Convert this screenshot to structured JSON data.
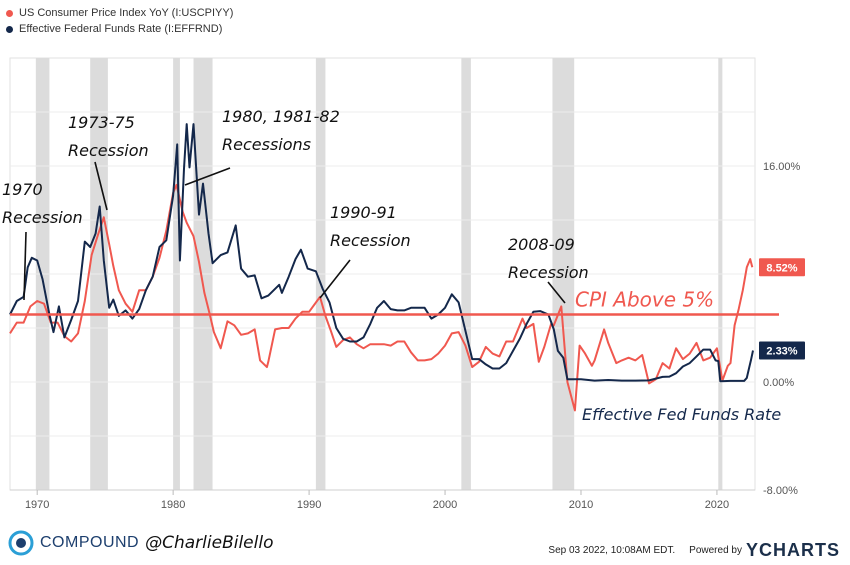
{
  "legend": [
    {
      "label": "US Consumer Price Index YoY (I:USCPIYY)",
      "color": "#f0584f"
    },
    {
      "label": "Effective Federal Funds Rate (I:EFFRND)",
      "color": "#14284b"
    }
  ],
  "footer": {
    "brand": "COMPOUND",
    "handle": "@CharlieBilello",
    "timestamp": "Sep 03 2022, 10:08AM EDT.",
    "powered_by": "Powered by",
    "ycharts": "YCHARTS"
  },
  "chart_data": {
    "type": "line",
    "x_range": [
      1968,
      2022.8
    ],
    "y_range": [
      -8,
      24
    ],
    "y_ticks": [
      {
        "value": 16,
        "label": "16.00%"
      },
      {
        "value": 0,
        "label": "0.00%"
      },
      {
        "value": -8,
        "label": "-8.00%"
      }
    ],
    "x_ticks": [
      {
        "value": 1970,
        "label": "1970"
      },
      {
        "value": 1980,
        "label": "1980"
      },
      {
        "value": 1990,
        "label": "1990"
      },
      {
        "value": 2000,
        "label": "2000"
      },
      {
        "value": 2010,
        "label": "2010"
      },
      {
        "value": 2020,
        "label": "2020"
      }
    ],
    "recessions": [
      [
        1969.9,
        1970.9
      ],
      [
        1973.9,
        1975.2
      ],
      [
        1980.0,
        1980.5
      ],
      [
        1981.5,
        1982.9
      ],
      [
        1990.5,
        1991.2
      ],
      [
        2001.2,
        2001.9
      ],
      [
        2007.9,
        2009.5
      ],
      [
        2020.1,
        2020.4
      ]
    ],
    "reference_line": {
      "value": 5,
      "label": "CPI Above 5%",
      "color": "#f0584f"
    },
    "series": [
      {
        "name": "US Consumer Price Index YoY (I:USCPIYY)",
        "color": "#f0584f",
        "end_label": "8.52%",
        "points": [
          [
            1968,
            3.6
          ],
          [
            1968.5,
            4.4
          ],
          [
            1969,
            4.4
          ],
          [
            1969.5,
            5.6
          ],
          [
            1970,
            6.0
          ],
          [
            1970.5,
            5.8
          ],
          [
            1971,
            4.4
          ],
          [
            1971.5,
            4.4
          ],
          [
            1972,
            3.4
          ],
          [
            1972.5,
            3.0
          ],
          [
            1973,
            3.6
          ],
          [
            1973.5,
            6.0
          ],
          [
            1974,
            9.4
          ],
          [
            1974.5,
            11.0
          ],
          [
            1974.9,
            12.2
          ],
          [
            1975.3,
            10.2
          ],
          [
            1975.6,
            8.6
          ],
          [
            1976,
            6.8
          ],
          [
            1976.5,
            5.8
          ],
          [
            1977,
            5.2
          ],
          [
            1977.5,
            6.8
          ],
          [
            1978,
            6.8
          ],
          [
            1978.5,
            7.8
          ],
          [
            1979,
            9.2
          ],
          [
            1979.5,
            11.2
          ],
          [
            1980,
            14.0
          ],
          [
            1980.25,
            14.6
          ],
          [
            1980.7,
            12.6
          ],
          [
            1981,
            11.8
          ],
          [
            1981.5,
            10.8
          ],
          [
            1981.9,
            8.9
          ],
          [
            1982.3,
            6.6
          ],
          [
            1982.7,
            5.0
          ],
          [
            1983,
            3.7
          ],
          [
            1983.5,
            2.5
          ],
          [
            1984,
            4.5
          ],
          [
            1984.5,
            4.2
          ],
          [
            1985,
            3.5
          ],
          [
            1985.5,
            3.6
          ],
          [
            1986,
            3.9
          ],
          [
            1986.4,
            1.6
          ],
          [
            1986.9,
            1.1
          ],
          [
            1987,
            1.5
          ],
          [
            1987.5,
            3.9
          ],
          [
            1988,
            4.0
          ],
          [
            1988.5,
            4.0
          ],
          [
            1989,
            4.7
          ],
          [
            1989.5,
            5.2
          ],
          [
            1990,
            5.2
          ],
          [
            1990.8,
            6.3
          ],
          [
            1991.2,
            4.9
          ],
          [
            1991.6,
            3.8
          ],
          [
            1992,
            2.6
          ],
          [
            1992.5,
            3.1
          ],
          [
            1993,
            3.3
          ],
          [
            1993.5,
            2.8
          ],
          [
            1994,
            2.5
          ],
          [
            1994.5,
            2.8
          ],
          [
            1995,
            2.8
          ],
          [
            1995.5,
            2.8
          ],
          [
            1996,
            2.7
          ],
          [
            1996.5,
            3.0
          ],
          [
            1997,
            3.0
          ],
          [
            1997.5,
            2.2
          ],
          [
            1998,
            1.6
          ],
          [
            1998.5,
            1.6
          ],
          [
            1999,
            1.7
          ],
          [
            1999.5,
            2.1
          ],
          [
            2000,
            2.7
          ],
          [
            2000.5,
            3.6
          ],
          [
            2001,
            3.7
          ],
          [
            2001.5,
            2.7
          ],
          [
            2002,
            1.1
          ],
          [
            2002.5,
            1.5
          ],
          [
            2003,
            2.6
          ],
          [
            2003.5,
            2.1
          ],
          [
            2004,
            1.9
          ],
          [
            2004.5,
            3.0
          ],
          [
            2005,
            3.0
          ],
          [
            2005.7,
            4.7
          ],
          [
            2006,
            4.0
          ],
          [
            2006.5,
            4.3
          ],
          [
            2006.9,
            1.5
          ],
          [
            2007.3,
            2.6
          ],
          [
            2007.8,
            4.3
          ],
          [
            2008,
            4.2
          ],
          [
            2008.55,
            5.6
          ],
          [
            2009,
            0.0
          ],
          [
            2009.55,
            -2.1
          ],
          [
            2009.9,
            2.7
          ],
          [
            2010.3,
            2.1
          ],
          [
            2010.8,
            1.2
          ],
          [
            2011,
            1.6
          ],
          [
            2011.7,
            3.9
          ],
          [
            2012,
            2.9
          ],
          [
            2012.6,
            1.4
          ],
          [
            2013,
            1.6
          ],
          [
            2013.5,
            1.8
          ],
          [
            2014,
            1.6
          ],
          [
            2014.5,
            2.0
          ],
          [
            2015,
            -0.1
          ],
          [
            2015.5,
            0.2
          ],
          [
            2016,
            1.4
          ],
          [
            2016.5,
            1.0
          ],
          [
            2017,
            2.5
          ],
          [
            2017.5,
            1.7
          ],
          [
            2018,
            2.1
          ],
          [
            2018.5,
            2.9
          ],
          [
            2019,
            1.6
          ],
          [
            2019.5,
            1.8
          ],
          [
            2020,
            2.5
          ],
          [
            2020.4,
            0.1
          ],
          [
            2020.8,
            1.2
          ],
          [
            2021,
            1.4
          ],
          [
            2021.3,
            4.2
          ],
          [
            2021.6,
            5.4
          ],
          [
            2021.9,
            6.8
          ],
          [
            2022.2,
            8.5
          ],
          [
            2022.45,
            9.1
          ],
          [
            2022.6,
            8.5
          ]
        ]
      },
      {
        "name": "Effective Federal Funds Rate (I:EFFRND)",
        "color": "#14284b",
        "end_label": "2.33%",
        "points": [
          [
            1968,
            5.0
          ],
          [
            1968.5,
            6.0
          ],
          [
            1969,
            6.3
          ],
          [
            1969.3,
            8.5
          ],
          [
            1969.6,
            9.2
          ],
          [
            1970,
            9.0
          ],
          [
            1970.4,
            7.6
          ],
          [
            1970.9,
            5.0
          ],
          [
            1971.2,
            3.7
          ],
          [
            1971.6,
            5.6
          ],
          [
            1972,
            3.3
          ],
          [
            1972.5,
            4.6
          ],
          [
            1973,
            6.0
          ],
          [
            1973.5,
            10.4
          ],
          [
            1973.9,
            10.0
          ],
          [
            1974.3,
            11.0
          ],
          [
            1974.6,
            13.0
          ],
          [
            1974.9,
            9.0
          ],
          [
            1975.3,
            5.5
          ],
          [
            1975.6,
            6.1
          ],
          [
            1976,
            4.9
          ],
          [
            1976.5,
            5.3
          ],
          [
            1977,
            4.7
          ],
          [
            1977.5,
            5.4
          ],
          [
            1978,
            6.8
          ],
          [
            1978.5,
            7.8
          ],
          [
            1979,
            10.0
          ],
          [
            1979.5,
            10.5
          ],
          [
            1980,
            13.8
          ],
          [
            1980.3,
            17.6
          ],
          [
            1980.5,
            9.0
          ],
          [
            1980.8,
            15.8
          ],
          [
            1981,
            19.1
          ],
          [
            1981.2,
            15.9
          ],
          [
            1981.5,
            19.1
          ],
          [
            1981.9,
            12.4
          ],
          [
            1982.2,
            14.7
          ],
          [
            1982.6,
            11.0
          ],
          [
            1982.9,
            8.8
          ],
          [
            1983.5,
            9.4
          ],
          [
            1984,
            9.6
          ],
          [
            1984.6,
            11.6
          ],
          [
            1985,
            8.4
          ],
          [
            1985.5,
            7.8
          ],
          [
            1986,
            7.9
          ],
          [
            1986.5,
            6.2
          ],
          [
            1987,
            6.4
          ],
          [
            1987.8,
            7.2
          ],
          [
            1988,
            6.6
          ],
          [
            1988.5,
            7.8
          ],
          [
            1989,
            9.1
          ],
          [
            1989.4,
            9.8
          ],
          [
            1989.9,
            8.4
          ],
          [
            1990.5,
            8.2
          ],
          [
            1991,
            6.9
          ],
          [
            1991.5,
            5.9
          ],
          [
            1992,
            4.0
          ],
          [
            1992.5,
            3.2
          ],
          [
            1993,
            3.0
          ],
          [
            1993.5,
            3.0
          ],
          [
            1994,
            3.3
          ],
          [
            1994.5,
            4.3
          ],
          [
            1995,
            5.5
          ],
          [
            1995.5,
            6.0
          ],
          [
            1996,
            5.4
          ],
          [
            1996.5,
            5.3
          ],
          [
            1997,
            5.3
          ],
          [
            1997.5,
            5.5
          ],
          [
            1998,
            5.5
          ],
          [
            1998.5,
            5.5
          ],
          [
            1999,
            4.7
          ],
          [
            1999.5,
            5.0
          ],
          [
            2000,
            5.5
          ],
          [
            2000.5,
            6.5
          ],
          [
            2001,
            5.9
          ],
          [
            2001.5,
            3.8
          ],
          [
            2002,
            1.7
          ],
          [
            2002.5,
            1.7
          ],
          [
            2003,
            1.3
          ],
          [
            2003.5,
            1.0
          ],
          [
            2004,
            1.0
          ],
          [
            2004.5,
            1.4
          ],
          [
            2005,
            2.3
          ],
          [
            2005.5,
            3.2
          ],
          [
            2006,
            4.3
          ],
          [
            2006.5,
            5.2
          ],
          [
            2007,
            5.25
          ],
          [
            2007.6,
            5.0
          ],
          [
            2008,
            3.9
          ],
          [
            2008.3,
            2.3
          ],
          [
            2008.7,
            1.8
          ],
          [
            2009,
            0.2
          ],
          [
            2010,
            0.2
          ],
          [
            2011,
            0.1
          ],
          [
            2012,
            0.15
          ],
          [
            2013,
            0.1
          ],
          [
            2014,
            0.1
          ],
          [
            2015,
            0.12
          ],
          [
            2016,
            0.38
          ],
          [
            2016.5,
            0.4
          ],
          [
            2017,
            0.65
          ],
          [
            2017.5,
            1.15
          ],
          [
            2018,
            1.4
          ],
          [
            2018.5,
            1.9
          ],
          [
            2019,
            2.4
          ],
          [
            2019.5,
            2.4
          ],
          [
            2019.9,
            1.6
          ],
          [
            2020.1,
            1.55
          ],
          [
            2020.25,
            0.05
          ],
          [
            2021,
            0.08
          ],
          [
            2022,
            0.08
          ],
          [
            2022.2,
            0.3
          ],
          [
            2022.4,
            1.2
          ],
          [
            2022.5,
            1.6
          ],
          [
            2022.65,
            2.33
          ]
        ]
      }
    ],
    "annotations": [
      {
        "lines": [
          "1970",
          "Recession"
        ],
        "color": "#111111",
        "anchor": [
          1969.6,
          6.2
        ]
      },
      {
        "lines": [
          "1973-75",
          "Recession"
        ],
        "color": "#111111",
        "anchor": [
          1974.8,
          12.6
        ]
      },
      {
        "lines": [
          "1980, 1981-82",
          "Recessions"
        ],
        "color": "#111111",
        "anchor": [
          1980.5,
          14.2
        ]
      },
      {
        "lines": [
          "1990-91",
          "Recession"
        ],
        "color": "#111111",
        "anchor": [
          1990.6,
          6.6
        ]
      },
      {
        "lines": [
          "2008-09",
          "Recession"
        ],
        "color": "#111111",
        "anchor": [
          2008.6,
          5.6
        ]
      },
      {
        "lines": [
          "Effective Fed Funds Rate"
        ],
        "color": "#14284b",
        "anchor": null
      }
    ]
  }
}
